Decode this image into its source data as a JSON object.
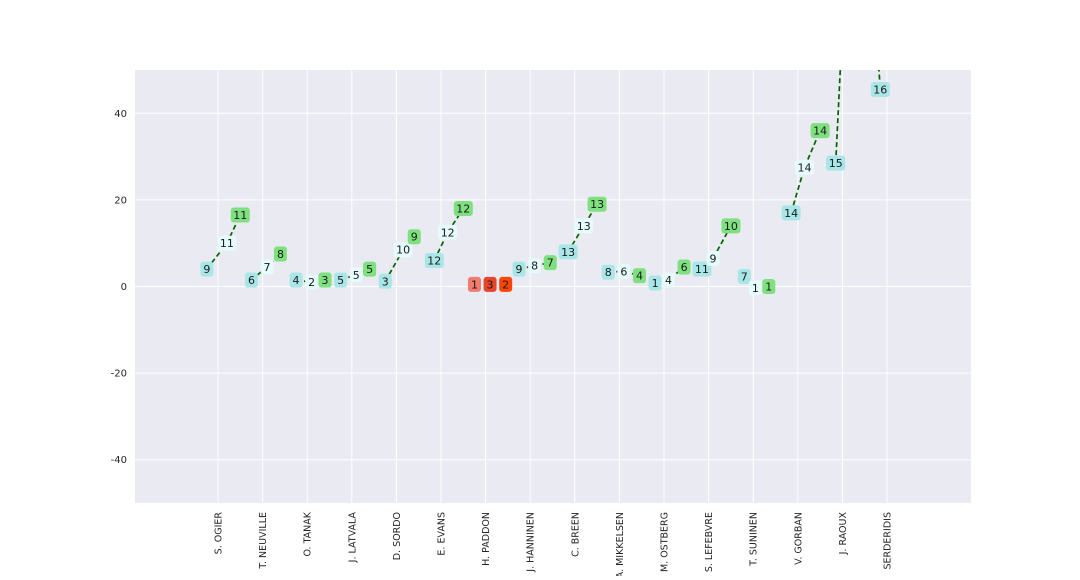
{
  "chart_data": {
    "type": "line",
    "title": "",
    "xlabel": "",
    "ylabel": "",
    "ylim": [
      -50,
      50
    ],
    "yticks": [
      -40,
      -20,
      0,
      20,
      40
    ],
    "categories": [
      "S. OGIER",
      "T. NEUVILLE",
      "O. TANAK",
      "J. LATVALA",
      "D. SORDO",
      "E. EVANS",
      "H. PADDON",
      "J. HANNINEN",
      "C. BREEN",
      "A. MIKKELSEN",
      "M. OSTBERG",
      "S. LEFEBVRE",
      "T. SUNINEN",
      "V. GORBAN",
      "J. RAOUX",
      "SERDERIDIS"
    ],
    "grid": true,
    "colors": {
      "background": "#EAEAF2",
      "grid": "#FFFFFF",
      "line": "#006400",
      "label_cyan": "#A9E6E8",
      "label_light": "#E6FBFB",
      "label_green": "#7FE07F",
      "label_salmon": "#F07B6E",
      "label_red": "#E6452A",
      "label_orange": "#FF4500"
    },
    "series": [
      {
        "category": 0,
        "points": [
          {
            "x": -0.25,
            "y": 4,
            "label": "9",
            "style": "cyan"
          },
          {
            "x": 0.2,
            "y": 10,
            "label": "11",
            "style": "light"
          },
          {
            "x": 0.5,
            "y": 16.5,
            "label": "11",
            "style": "green"
          }
        ]
      },
      {
        "category": 1,
        "points": [
          {
            "x": -0.25,
            "y": 1.5,
            "label": "6",
            "style": "cyan"
          },
          {
            "x": 0.1,
            "y": 4.5,
            "label": "7",
            "style": "light"
          },
          {
            "x": 0.4,
            "y": 7.5,
            "label": "8",
            "style": "green"
          }
        ]
      },
      {
        "category": 2,
        "points": [
          {
            "x": -0.25,
            "y": 1.5,
            "label": "4",
            "style": "cyan"
          },
          {
            "x": 0.1,
            "y": 1,
            "label": "2",
            "style": "light"
          },
          {
            "x": 0.4,
            "y": 1.5,
            "label": "3",
            "style": "green"
          }
        ]
      },
      {
        "category": 3,
        "points": [
          {
            "x": -0.25,
            "y": 1.5,
            "label": "5",
            "style": "cyan"
          },
          {
            "x": 0.1,
            "y": 2.7,
            "label": "5",
            "style": "light"
          },
          {
            "x": 0.4,
            "y": 4,
            "label": "5",
            "style": "green"
          }
        ]
      },
      {
        "category": 4,
        "points": [
          {
            "x": -0.25,
            "y": 1.2,
            "label": "3",
            "style": "cyan"
          },
          {
            "x": 0.15,
            "y": 8.5,
            "label": "10",
            "style": "light"
          },
          {
            "x": 0.4,
            "y": 11.5,
            "label": "9",
            "style": "green"
          }
        ]
      },
      {
        "category": 5,
        "points": [
          {
            "x": -0.15,
            "y": 6,
            "label": "12",
            "style": "cyan"
          },
          {
            "x": 0.15,
            "y": 12.5,
            "label": "12",
            "style": "light"
          },
          {
            "x": 0.5,
            "y": 18,
            "label": "12",
            "style": "green"
          }
        ]
      },
      {
        "category": 6,
        "points": [
          {
            "x": -0.25,
            "y": 0.5,
            "label": "1",
            "style": "salmon"
          },
          {
            "x": 0.1,
            "y": 0.5,
            "label": "3",
            "style": "red"
          },
          {
            "x": 0.45,
            "y": 0.5,
            "label": "2",
            "style": "orange"
          }
        ]
      },
      {
        "category": 7,
        "points": [
          {
            "x": -0.25,
            "y": 4,
            "label": "9",
            "style": "cyan"
          },
          {
            "x": 0.1,
            "y": 4.8,
            "label": "8",
            "style": "light"
          },
          {
            "x": 0.45,
            "y": 5.5,
            "label": "7",
            "style": "green"
          }
        ]
      },
      {
        "category": 8,
        "points": [
          {
            "x": -0.15,
            "y": 8,
            "label": "13",
            "style": "cyan"
          },
          {
            "x": 0.2,
            "y": 14,
            "label": "13",
            "style": "light"
          },
          {
            "x": 0.5,
            "y": 19,
            "label": "13",
            "style": "green"
          }
        ]
      },
      {
        "category": 9,
        "points": [
          {
            "x": -0.25,
            "y": 3.3,
            "label": "8",
            "style": "cyan"
          },
          {
            "x": 0.1,
            "y": 3.5,
            "label": "6",
            "style": "light"
          },
          {
            "x": 0.45,
            "y": 2.5,
            "label": "4",
            "style": "green"
          }
        ]
      },
      {
        "category": 10,
        "points": [
          {
            "x": -0.2,
            "y": 0.8,
            "label": "1",
            "style": "cyan"
          },
          {
            "x": 0.1,
            "y": 1.5,
            "label": "4",
            "style": "light"
          },
          {
            "x": 0.45,
            "y": 4.5,
            "label": "6",
            "style": "green"
          }
        ]
      },
      {
        "category": 11,
        "points": [
          {
            "x": -0.15,
            "y": 4,
            "label": "11",
            "style": "cyan"
          },
          {
            "x": 0.1,
            "y": 6.5,
            "label": "9",
            "style": "light"
          },
          {
            "x": 0.5,
            "y": 14,
            "label": "10",
            "style": "green"
          }
        ]
      },
      {
        "category": 12,
        "points": [
          {
            "x": -0.2,
            "y": 2.3,
            "label": "7",
            "style": "cyan"
          },
          {
            "x": 0.05,
            "y": -0.3,
            "label": "1",
            "style": "light"
          },
          {
            "x": 0.35,
            "y": 0,
            "label": "1",
            "style": "green"
          }
        ]
      },
      {
        "category": 13,
        "points": [
          {
            "x": -0.15,
            "y": 17,
            "label": "14",
            "style": "cyan"
          },
          {
            "x": 0.15,
            "y": 27.5,
            "label": "14",
            "style": "light"
          },
          {
            "x": 0.5,
            "y": 36,
            "label": "14",
            "style": "green"
          }
        ]
      },
      {
        "category": 14,
        "points": [
          {
            "x": -0.15,
            "y": 28.5,
            "label": "15",
            "style": "cyan"
          },
          {
            "x": 0.0,
            "y": 60,
            "label": "",
            "style": "none"
          }
        ]
      },
      {
        "category": 15,
        "points": [
          {
            "x": -0.25,
            "y": 60,
            "label": "",
            "style": "none"
          },
          {
            "x": -0.15,
            "y": 45.5,
            "label": "16",
            "style": "cyan"
          }
        ]
      }
    ]
  }
}
